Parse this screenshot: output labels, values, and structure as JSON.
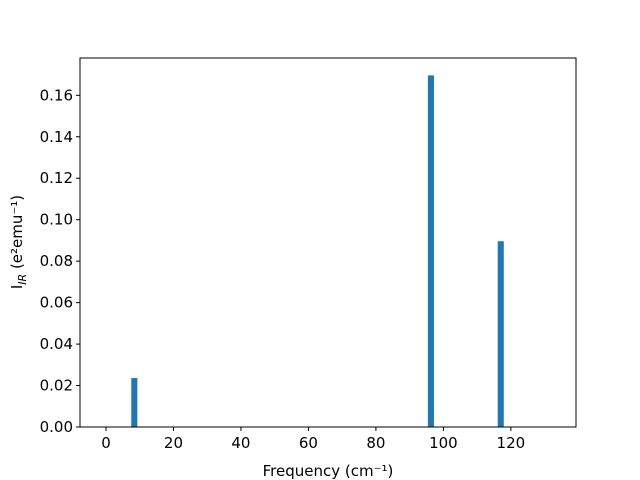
{
  "chart_data": {
    "type": "bar",
    "x": [
      8.4,
      96.3,
      117.0
    ],
    "values": [
      0.0236,
      0.1696,
      0.0896
    ],
    "bar_width": 1.8,
    "color": "#1f77b4",
    "xlabel": "Frequency (cm⁻¹)",
    "ylabel": {
      "main": "I",
      "sub": "IR",
      "rest": " (e²emu⁻¹)"
    },
    "xlim": [
      -7.7,
      139.3
    ],
    "ylim": [
      0,
      0.178
    ],
    "xticks": [
      0,
      20,
      40,
      60,
      80,
      100,
      120
    ],
    "yticks": [
      {
        "value": 0,
        "label": "0.00"
      },
      {
        "value": 0.02,
        "label": "0.02"
      },
      {
        "value": 0.04,
        "label": "0.04"
      },
      {
        "value": 0.06,
        "label": "0.06"
      },
      {
        "value": 0.08,
        "label": "0.08"
      },
      {
        "value": 0.1,
        "label": "0.10"
      },
      {
        "value": 0.12,
        "label": "0.12"
      },
      {
        "value": 0.14,
        "label": "0.14"
      },
      {
        "value": 0.16,
        "label": "0.16"
      }
    ],
    "grid": false
  }
}
